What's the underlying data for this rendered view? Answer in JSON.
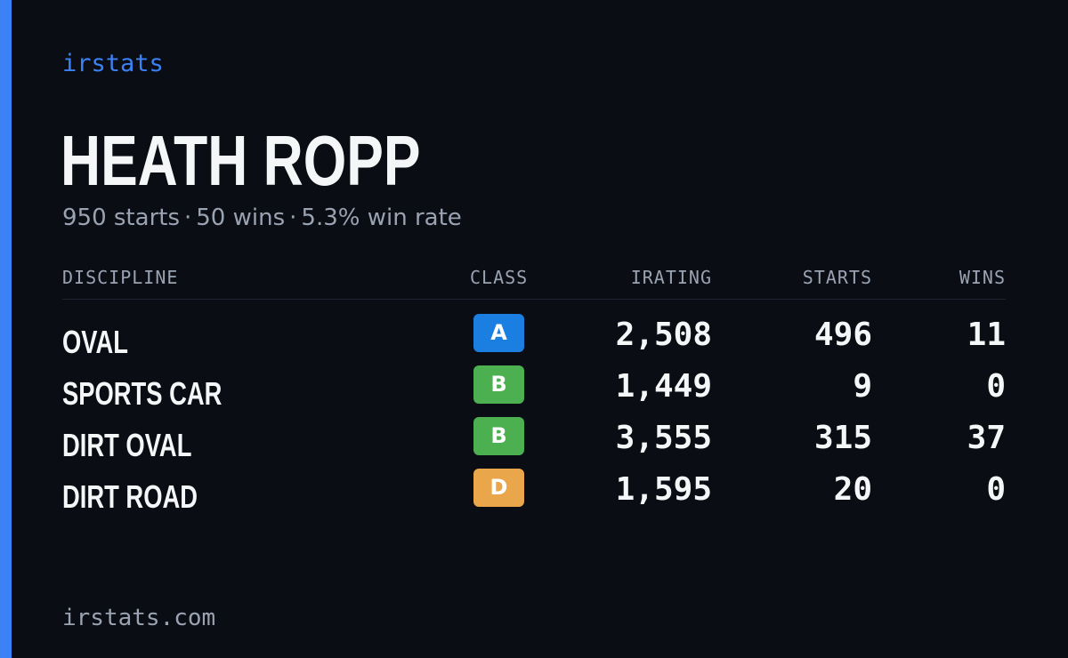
{
  "header": {
    "brand": "irstats"
  },
  "driver": {
    "name": "HEATH ROPP",
    "starts_summary": "950 starts",
    "wins_summary": "50 wins",
    "win_rate_summary": "5.3% win rate",
    "separator": "·"
  },
  "table": {
    "columns": {
      "discipline": "DISCIPLINE",
      "class": "CLASS",
      "irating": "IRATING",
      "starts": "STARTS",
      "wins": "WINS"
    },
    "rows": [
      {
        "discipline": "OVAL",
        "class": "A",
        "class_color": "#1a7fe0",
        "irating": "2,508",
        "starts": "496",
        "wins": "11"
      },
      {
        "discipline": "SPORTS CAR",
        "class": "B",
        "class_color": "#4caf50",
        "irating": "1,449",
        "starts": "9",
        "wins": "0"
      },
      {
        "discipline": "DIRT OVAL",
        "class": "B",
        "class_color": "#4caf50",
        "irating": "3,555",
        "starts": "315",
        "wins": "37"
      },
      {
        "discipline": "DIRT ROAD",
        "class": "D",
        "class_color": "#eaa64a",
        "irating": "1,595",
        "starts": "20",
        "wins": "0"
      }
    ]
  },
  "footer": {
    "url": "irstats.com"
  },
  "colors": {
    "background": "#0a0d14",
    "accent": "#3b82f6",
    "text_primary": "#f5f6f8",
    "text_muted": "#9aa3b2"
  }
}
